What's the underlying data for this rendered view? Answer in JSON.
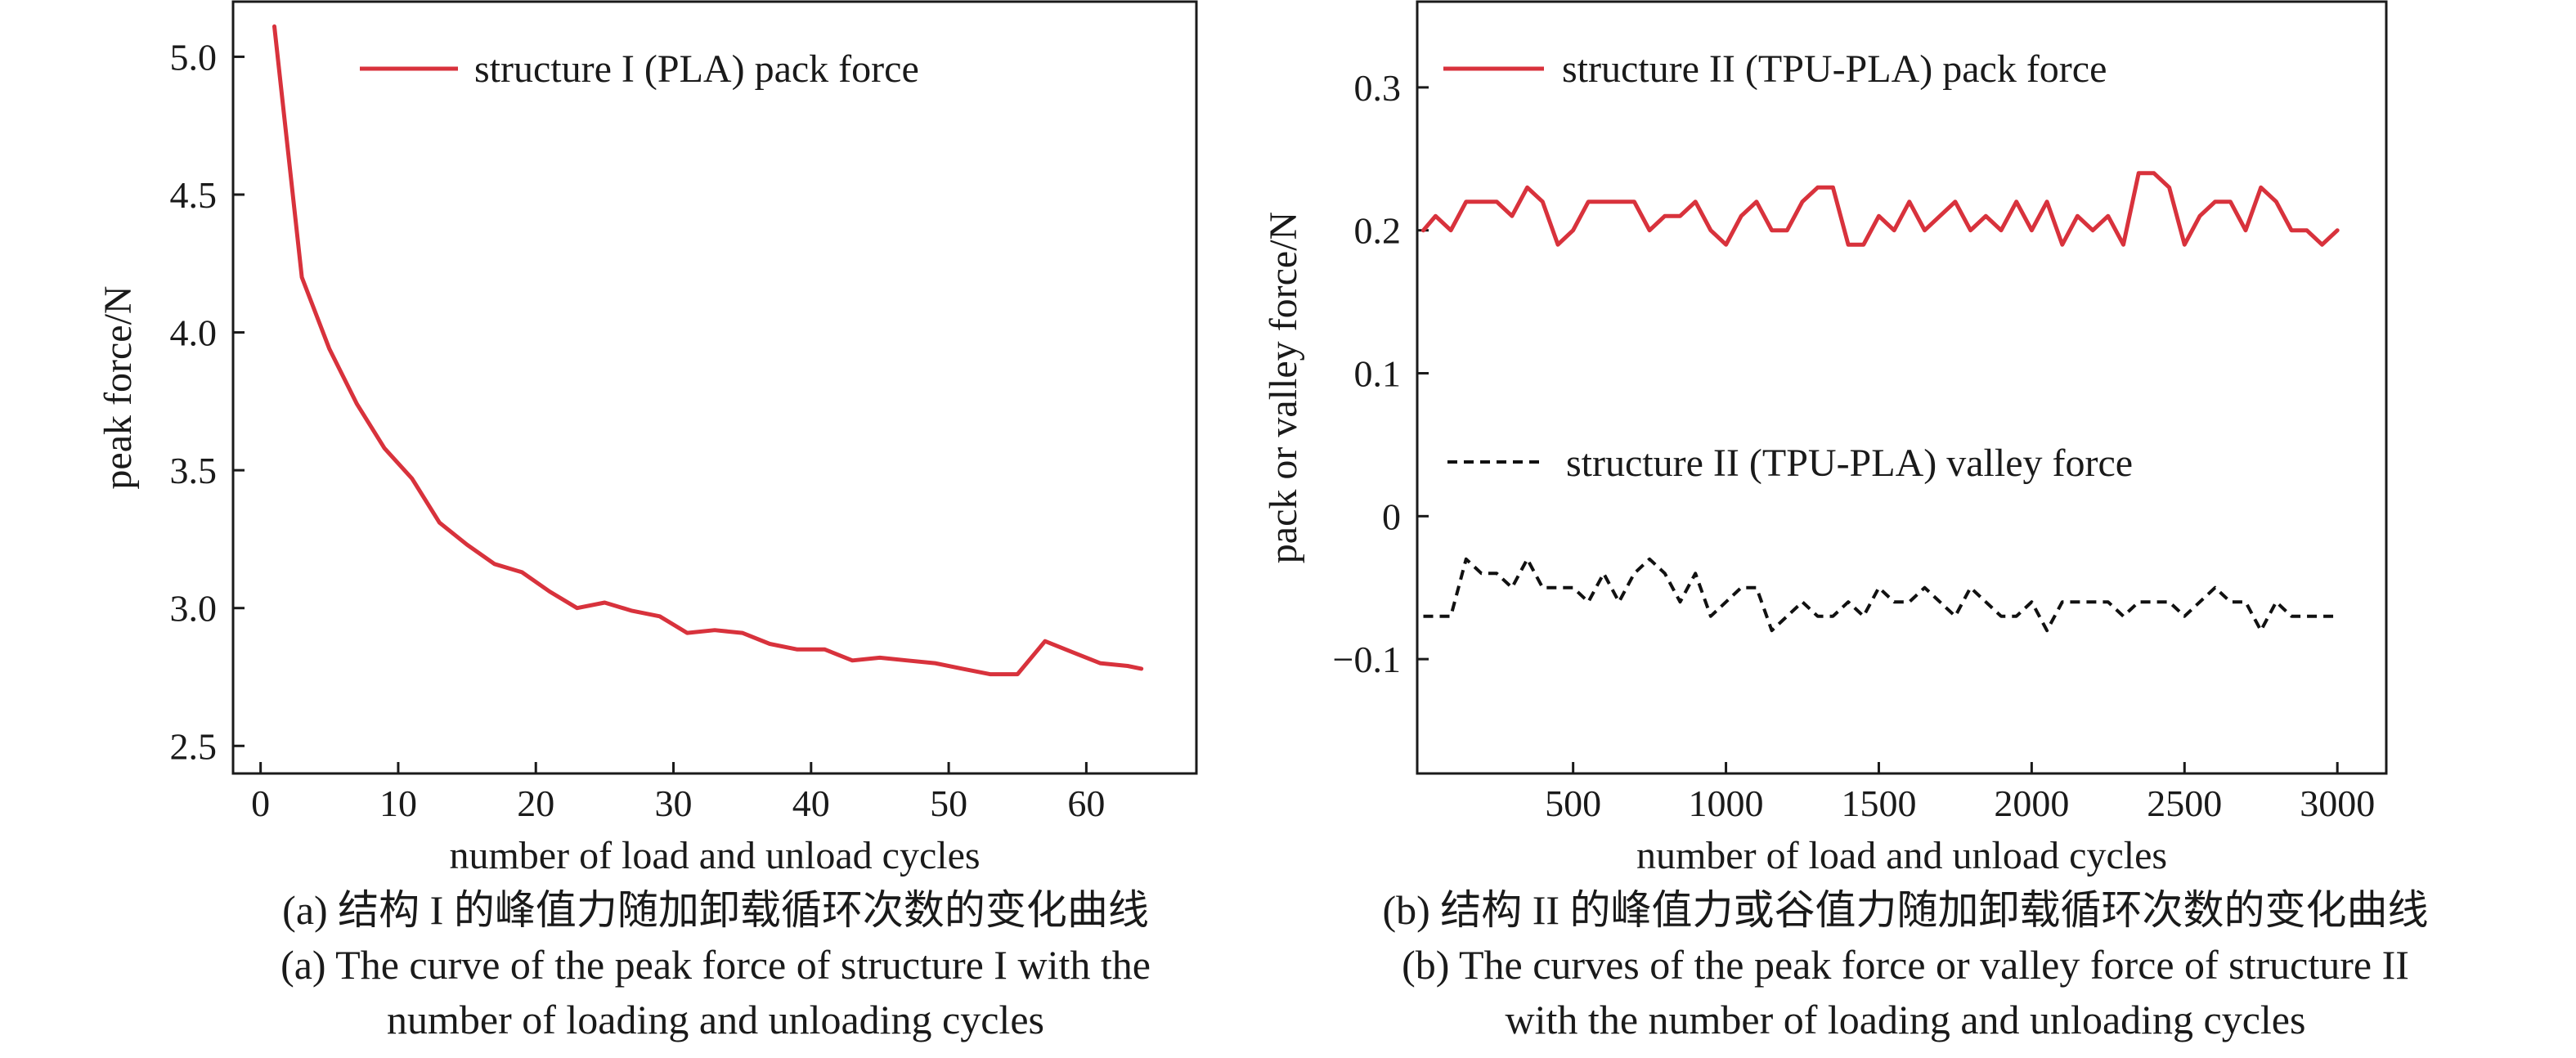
{
  "chart_data": [
    {
      "type": "line",
      "panel": "a",
      "xlabel": "number of load and unload cycles",
      "ylabel": "peak force/N",
      "xlim": [
        -2,
        68
      ],
      "ylim": [
        2.4,
        5.2
      ],
      "xticks": [
        0,
        10,
        20,
        30,
        40,
        50,
        60
      ],
      "xtick_labels": [
        "0",
        "10",
        "20",
        "30",
        "40",
        "50",
        "60"
      ],
      "yticks": [
        2.5,
        3.0,
        3.5,
        4.0,
        4.5,
        5.0
      ],
      "ytick_labels": [
        "2.5",
        "3.0",
        "3.5",
        "4.0",
        "4.5",
        "5.0"
      ],
      "grid": false,
      "legend_position": "top-center",
      "series": [
        {
          "name": "structure I (PLA) pack force",
          "color": "#d8323c",
          "dash": "solid",
          "x": [
            1,
            3,
            5,
            7,
            9,
            11,
            13,
            15,
            17,
            19,
            21,
            23,
            25,
            27,
            29,
            31,
            33,
            35,
            37,
            39,
            41,
            43,
            45,
            47,
            49,
            51,
            53,
            55,
            57,
            59,
            61,
            63,
            64
          ],
          "y": [
            5.11,
            4.2,
            3.94,
            3.74,
            3.58,
            3.47,
            3.31,
            3.23,
            3.16,
            3.13,
            3.06,
            3.0,
            3.02,
            2.99,
            2.97,
            2.91,
            2.92,
            2.91,
            2.87,
            2.85,
            2.85,
            2.81,
            2.82,
            2.81,
            2.8,
            2.78,
            2.76,
            2.76,
            2.88,
            2.84,
            2.8,
            2.79,
            2.78
          ]
        }
      ]
    },
    {
      "type": "line",
      "panel": "b",
      "xlabel": "number of load and unload cycles",
      "ylabel": "pack or valley force/N",
      "xlim": [
        -10,
        3160
      ],
      "ylim": [
        -0.18,
        0.36
      ],
      "xticks": [
        500,
        1000,
        1500,
        2000,
        2500,
        3000
      ],
      "xtick_labels": [
        "500",
        "1000",
        "1500",
        "2000",
        "2500",
        "3000"
      ],
      "yticks": [
        -0.1,
        0,
        0.1,
        0.2,
        0.3
      ],
      "ytick_labels": [
        "−0.1",
        "0",
        "0.1",
        "0.2",
        "0.3"
      ],
      "grid": false,
      "series": [
        {
          "name": "structure II (TPU-PLA) pack force",
          "color": "#d8323c",
          "dash": "solid",
          "x": [
            10,
            50,
            100,
            150,
            200,
            250,
            300,
            350,
            400,
            450,
            500,
            550,
            600,
            650,
            700,
            750,
            800,
            850,
            900,
            950,
            1000,
            1050,
            1100,
            1150,
            1200,
            1250,
            1300,
            1350,
            1400,
            1450,
            1500,
            1550,
            1600,
            1650,
            1700,
            1750,
            1800,
            1850,
            1900,
            1950,
            2000,
            2050,
            2100,
            2150,
            2200,
            2250,
            2300,
            2350,
            2400,
            2450,
            2500,
            2550,
            2600,
            2650,
            2700,
            2750,
            2800,
            2850,
            2900,
            2950,
            3000
          ],
          "y": [
            0.2,
            0.21,
            0.2,
            0.22,
            0.22,
            0.22,
            0.21,
            0.23,
            0.22,
            0.19,
            0.2,
            0.22,
            0.22,
            0.22,
            0.22,
            0.2,
            0.21,
            0.21,
            0.22,
            0.2,
            0.19,
            0.21,
            0.22,
            0.2,
            0.2,
            0.22,
            0.23,
            0.23,
            0.19,
            0.19,
            0.21,
            0.2,
            0.22,
            0.2,
            0.21,
            0.22,
            0.2,
            0.21,
            0.2,
            0.22,
            0.2,
            0.22,
            0.19,
            0.21,
            0.2,
            0.21,
            0.19,
            0.24,
            0.24,
            0.23,
            0.19,
            0.21,
            0.22,
            0.22,
            0.2,
            0.23,
            0.22,
            0.2,
            0.2,
            0.19,
            0.2
          ]
        },
        {
          "name": "structure II (TPU-PLA) valley force",
          "color": "#111111",
          "dash": "dashed",
          "x": [
            10,
            50,
            100,
            150,
            200,
            250,
            300,
            350,
            400,
            450,
            500,
            550,
            600,
            650,
            700,
            750,
            800,
            850,
            900,
            950,
            1000,
            1050,
            1100,
            1150,
            1200,
            1250,
            1300,
            1350,
            1400,
            1450,
            1500,
            1550,
            1600,
            1650,
            1700,
            1750,
            1800,
            1850,
            1900,
            1950,
            2000,
            2050,
            2100,
            2150,
            2200,
            2250,
            2300,
            2350,
            2400,
            2450,
            2500,
            2550,
            2600,
            2650,
            2700,
            2750,
            2800,
            2850,
            2900,
            2950,
            3000
          ],
          "y": [
            -0.07,
            -0.07,
            -0.07,
            -0.03,
            -0.04,
            -0.04,
            -0.05,
            -0.03,
            -0.05,
            -0.05,
            -0.05,
            -0.06,
            -0.04,
            -0.06,
            -0.04,
            -0.03,
            -0.04,
            -0.06,
            -0.04,
            -0.07,
            -0.06,
            -0.05,
            -0.05,
            -0.08,
            -0.07,
            -0.06,
            -0.07,
            -0.07,
            -0.06,
            -0.07,
            -0.05,
            -0.06,
            -0.06,
            -0.05,
            -0.06,
            -0.07,
            -0.05,
            -0.06,
            -0.07,
            -0.07,
            -0.06,
            -0.08,
            -0.06,
            -0.06,
            -0.06,
            -0.06,
            -0.07,
            -0.06,
            -0.06,
            -0.06,
            -0.07,
            -0.06,
            -0.05,
            -0.06,
            -0.06,
            -0.08,
            -0.06,
            -0.07,
            -0.07,
            -0.07,
            -0.07
          ]
        }
      ]
    }
  ],
  "captions": {
    "a_zh": "(a) 结构 I 的峰值力随加卸载循环次数的变化曲线",
    "a_en_1": "(a) The curve of the peak force of structure I with the",
    "a_en_2": "number of loading and unloading cycles",
    "b_zh": "(b) 结构 II 的峰值力或谷值力随加卸载循环次数的变化曲线",
    "b_en_1": "(b) The curves of the peak force or valley force of structure II",
    "b_en_2": "with the number of loading and unloading cycles"
  }
}
